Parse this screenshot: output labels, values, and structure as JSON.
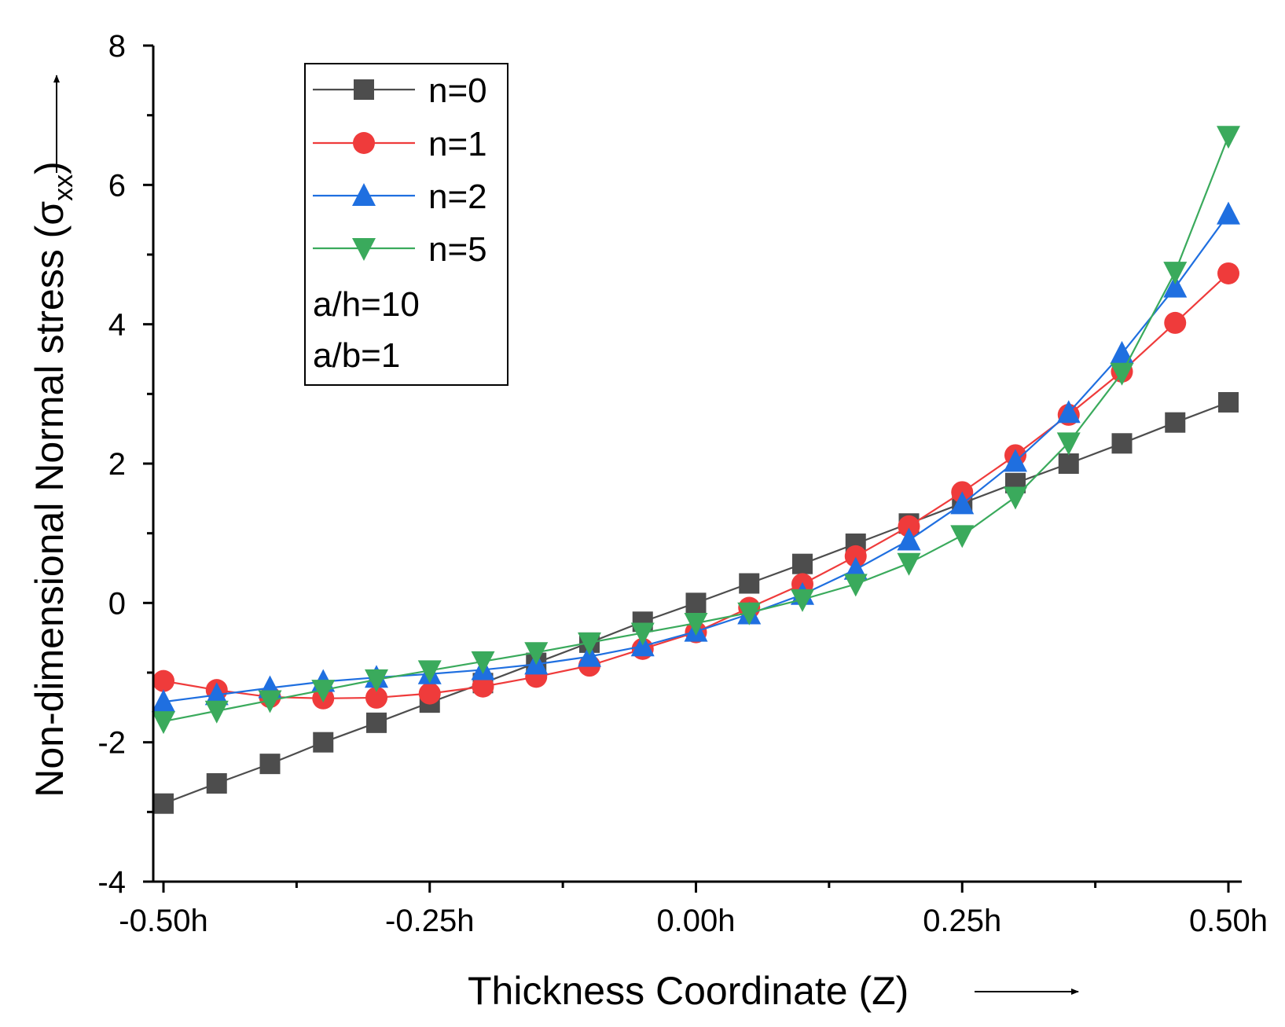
{
  "chart_data": {
    "type": "line",
    "xlabel": "Thickness Coordinate (Z)",
    "ylabel_main": "Non-dimensional Normal stress (σ",
    "ylabel_sub": "xx",
    "ylabel_close": ")",
    "ylim": [
      -4,
      8
    ],
    "xlim": [
      -0.5,
      0.5
    ],
    "x": [
      -0.5,
      -0.45,
      -0.4,
      -0.35,
      -0.3,
      -0.25,
      -0.2,
      -0.15,
      -0.1,
      -0.05,
      0.0,
      0.05,
      0.1,
      0.15,
      0.2,
      0.25,
      0.3,
      0.35,
      0.4,
      0.45,
      0.5
    ],
    "x_tick_values": [
      -0.5,
      -0.25,
      0.0,
      0.25,
      0.5
    ],
    "x_tick_labels": [
      "-0.50h",
      "-0.25h",
      "0.00h",
      "0.25h",
      "0.50h"
    ],
    "y_tick_values": [
      -4,
      -2,
      0,
      2,
      4,
      6,
      8
    ],
    "y_tick_labels": [
      "-4",
      "-2",
      "0",
      "2",
      "4",
      "6",
      "8"
    ],
    "grid": false,
    "legend_position": "top-left",
    "series": [
      {
        "name": "n=0",
        "color": "#4d4d4d",
        "marker": "square",
        "values": [
          -2.88,
          -2.59,
          -2.31,
          -2.0,
          -1.72,
          -1.43,
          -1.15,
          -0.86,
          -0.57,
          -0.27,
          0.0,
          0.28,
          0.56,
          0.85,
          1.14,
          1.43,
          1.72,
          2.0,
          2.29,
          2.59,
          2.88
        ]
      },
      {
        "name": "n=1",
        "color": "#ef3b3b",
        "marker": "circle",
        "values": [
          -1.12,
          -1.25,
          -1.35,
          -1.37,
          -1.36,
          -1.3,
          -1.2,
          -1.06,
          -0.9,
          -0.66,
          -0.42,
          -0.07,
          0.27,
          0.67,
          1.1,
          1.59,
          2.12,
          2.7,
          3.32,
          4.02,
          4.73
        ]
      },
      {
        "name": "n=2",
        "color": "#1f6fe0",
        "marker": "triangle-up",
        "values": [
          -1.42,
          -1.32,
          -1.22,
          -1.13,
          -1.07,
          -1.02,
          -0.96,
          -0.88,
          -0.77,
          -0.62,
          -0.41,
          -0.16,
          0.12,
          0.48,
          0.9,
          1.42,
          2.03,
          2.73,
          3.58,
          4.53,
          5.58
        ]
      },
      {
        "name": "n=5",
        "color": "#3aaa5c",
        "marker": "triangle-down",
        "values": [
          -1.7,
          -1.55,
          -1.4,
          -1.25,
          -1.1,
          -0.97,
          -0.84,
          -0.71,
          -0.57,
          -0.43,
          -0.29,
          -0.14,
          0.05,
          0.27,
          0.57,
          0.97,
          1.52,
          2.3,
          3.3,
          4.75,
          6.7
        ]
      }
    ],
    "annotations": [
      "a/h=10",
      "a/b=1"
    ]
  }
}
